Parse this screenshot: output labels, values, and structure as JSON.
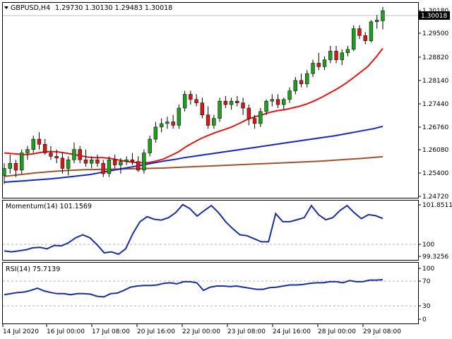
{
  "header": {
    "symbol_label": "GBPUSD,H4",
    "ohlc": "1.29730 1.30130 1.29483 1.30018",
    "menu_icon": "triangle-down-icon"
  },
  "colors": {
    "bull": "#1f9d1f",
    "bear": "#d11b1b",
    "ma_fast": "#e01818",
    "ma_mid": "#1627c8",
    "ma_slow": "#a0522d",
    "indicator_line": "#1b2f9e",
    "price_tag_bg": "#000000",
    "grid_dash": "#b0b0b0"
  },
  "price_axis": {
    "ticks": [
      "1.30180",
      "1.29500",
      "1.28820",
      "1.28140",
      "1.27440",
      "1.26760",
      "1.26080",
      "1.25400",
      "1.24720"
    ],
    "current_price": "1.30018"
  },
  "time_axis": {
    "labels": [
      "14 Jul 2020",
      "16 Jul 00:00",
      "17 Jul 08:00",
      "20 Jul 16:00",
      "22 Jul 00:00",
      "23 Jul 08:00",
      "24 Jul 16:00",
      "28 Jul 00:00",
      "29 Jul 08:00"
    ]
  },
  "momentum": {
    "label": "Momentum(14) 101.1569",
    "ticks": [
      "101.8511",
      "100",
      "99.3256"
    ]
  },
  "rsi": {
    "label": "RSI(14) 75.7139",
    "ticks": [
      "100",
      "70",
      "30",
      "0"
    ]
  },
  "chart_data": [
    {
      "type": "candlestick",
      "title": "GBPUSD,H4",
      "ylim": [
        1.246,
        1.3025
      ],
      "candles": [
        [
          1.2525,
          1.256,
          1.25,
          1.2545
        ],
        [
          1.2545,
          1.2585,
          1.253,
          1.256
        ],
        [
          1.256,
          1.257,
          1.252,
          1.254
        ],
        [
          1.254,
          1.26,
          1.253,
          1.259
        ],
        [
          1.259,
          1.261,
          1.257,
          1.26
        ],
        [
          1.26,
          1.264,
          1.259,
          1.263
        ],
        [
          1.263,
          1.265,
          1.26,
          1.2615
        ],
        [
          1.2615,
          1.263,
          1.2585,
          1.259
        ],
        [
          1.259,
          1.261,
          1.257,
          1.258
        ],
        [
          1.258,
          1.26,
          1.256,
          1.2575
        ],
        [
          1.2575,
          1.259,
          1.253,
          1.2545
        ],
        [
          1.2545,
          1.258,
          1.2525,
          1.257
        ],
        [
          1.257,
          1.262,
          1.256,
          1.26
        ],
        [
          1.26,
          1.261,
          1.256,
          1.257
        ],
        [
          1.257,
          1.26,
          1.255,
          1.256
        ],
        [
          1.256,
          1.258,
          1.2545,
          1.257
        ],
        [
          1.257,
          1.2585,
          1.255,
          1.256
        ],
        [
          1.256,
          1.257,
          1.252,
          1.253
        ],
        [
          1.253,
          1.258,
          1.252,
          1.257
        ],
        [
          1.257,
          1.2585,
          1.2545,
          1.2555
        ],
        [
          1.2555,
          1.2575,
          1.253,
          1.2565
        ],
        [
          1.2565,
          1.258,
          1.2555,
          1.257
        ],
        [
          1.257,
          1.259,
          1.2555,
          1.2565
        ],
        [
          1.2565,
          1.258,
          1.2535,
          1.254
        ],
        [
          1.254,
          1.26,
          1.253,
          1.259
        ],
        [
          1.259,
          1.264,
          1.258,
          1.263
        ],
        [
          1.263,
          1.268,
          1.262,
          1.2665
        ],
        [
          1.2665,
          1.269,
          1.265,
          1.2675
        ],
        [
          1.2675,
          1.2695,
          1.266,
          1.268
        ],
        [
          1.268,
          1.27,
          1.266,
          1.267
        ],
        [
          1.267,
          1.273,
          1.266,
          1.272
        ],
        [
          1.272,
          1.277,
          1.271,
          1.276
        ],
        [
          1.276,
          1.277,
          1.273,
          1.2745
        ],
        [
          1.2745,
          1.276,
          1.2725,
          1.2735
        ],
        [
          1.2735,
          1.275,
          1.269,
          1.27
        ],
        [
          1.27,
          1.2725,
          1.266,
          1.267
        ],
        [
          1.267,
          1.27,
          1.266,
          1.269
        ],
        [
          1.269,
          1.275,
          1.268,
          1.274
        ],
        [
          1.274,
          1.2755,
          1.272,
          1.273
        ],
        [
          1.273,
          1.275,
          1.2715,
          1.274
        ],
        [
          1.274,
          1.2755,
          1.2725,
          1.2735
        ],
        [
          1.2735,
          1.275,
          1.27,
          1.272
        ],
        [
          1.272,
          1.273,
          1.267,
          1.269
        ],
        [
          1.269,
          1.27,
          1.266,
          1.2675
        ],
        [
          1.2675,
          1.272,
          1.2665,
          1.271
        ],
        [
          1.271,
          1.2745,
          1.27,
          1.274
        ],
        [
          1.274,
          1.276,
          1.2725,
          1.2745
        ],
        [
          1.2745,
          1.276,
          1.272,
          1.273
        ],
        [
          1.273,
          1.275,
          1.2715,
          1.2745
        ],
        [
          1.2745,
          1.278,
          1.2735,
          1.277
        ],
        [
          1.277,
          1.281,
          1.276,
          1.28
        ],
        [
          1.28,
          1.282,
          1.278,
          1.279
        ],
        [
          1.279,
          1.283,
          1.278,
          1.282
        ],
        [
          1.282,
          1.286,
          1.281,
          1.285
        ],
        [
          1.285,
          1.288,
          1.283,
          1.284
        ],
        [
          1.284,
          1.287,
          1.283,
          1.286
        ],
        [
          1.286,
          1.29,
          1.285,
          1.2885
        ],
        [
          1.2885,
          1.29,
          1.285,
          1.286
        ],
        [
          1.286,
          1.289,
          1.2845,
          1.288
        ],
        [
          1.288,
          1.29,
          1.287,
          1.289
        ],
        [
          1.289,
          1.296,
          1.2885,
          1.295
        ],
        [
          1.295,
          1.296,
          1.292,
          1.293
        ],
        [
          1.293,
          1.294,
          1.2905,
          1.2915
        ],
        [
          1.2915,
          1.2975,
          1.291,
          1.297
        ],
        [
          1.297,
          1.299,
          1.295,
          1.2975
        ],
        [
          1.2973,
          1.3013,
          1.2948,
          1.3002
        ]
      ],
      "ma_fast": [
        1.259,
        1.2588,
        1.2586,
        1.2585,
        1.2588,
        1.2592,
        1.2594,
        1.2593,
        1.259,
        1.2586,
        1.2582,
        1.2578,
        1.2576,
        1.2576,
        1.2574,
        1.257,
        1.2566,
        1.2563,
        1.2562,
        1.2562,
        1.2566,
        1.2572,
        1.2582,
        1.2593,
        1.2608,
        1.262,
        1.2632,
        1.2641,
        1.265,
        1.2657,
        1.2665,
        1.2675,
        1.2686,
        1.2694,
        1.27,
        1.2707,
        1.2712,
        1.2715,
        1.272,
        1.2725,
        1.2732,
        1.2741,
        1.2752,
        1.2764,
        1.2776,
        1.279,
        1.2806,
        1.2823,
        1.284,
        1.2865,
        1.2893
      ],
      "ma_mid": [
        1.2505,
        1.2507,
        1.2509,
        1.2511,
        1.2513,
        1.2515,
        1.2518,
        1.2521,
        1.2524,
        1.2527,
        1.2532,
        1.2537,
        1.2542,
        1.2547,
        1.2552,
        1.2557,
        1.2562,
        1.2567,
        1.2571,
        1.2576,
        1.258,
        1.2584,
        1.2588,
        1.2592,
        1.2596,
        1.26,
        1.2604,
        1.2608,
        1.2612,
        1.2616,
        1.262,
        1.2624,
        1.2628,
        1.2632,
        1.2636,
        1.264,
        1.2645,
        1.265,
        1.2655,
        1.266,
        1.2667
      ],
      "ma_slow": [
        1.2522,
        1.2527,
        1.2532,
        1.2536,
        1.2539,
        1.2541,
        1.2542,
        1.2543,
        1.2544,
        1.2545,
        1.2546,
        1.2548,
        1.255,
        1.2552,
        1.2554,
        1.2556,
        1.2558,
        1.256,
        1.2562,
        1.2564,
        1.2566,
        1.2569,
        1.2572,
        1.2575,
        1.2579
      ],
      "momentum_values": [
        99.55,
        99.5,
        99.55,
        99.6,
        99.7,
        99.72,
        99.65,
        99.82,
        99.8,
        99.95,
        100.2,
        100.35,
        100.2,
        99.85,
        99.45,
        99.5,
        99.38,
        99.65,
        100.4,
        101.0,
        101.25,
        101.12,
        101.08,
        101.2,
        101.45,
        101.85,
        101.65,
        101.28,
        101.55,
        101.8,
        101.45,
        101.0,
        100.65,
        100.35,
        100.3,
        100.15,
        100.0,
        100.0,
        101.4,
        101.0,
        101.0,
        101.1,
        101.2,
        101.8,
        101.35,
        101.1,
        101.2,
        101.55,
        101.8,
        101.45,
        101.15,
        101.35,
        101.3,
        101.16
      ],
      "momentum_ylim": [
        99.1,
        102.05
      ],
      "rsi_values": [
        48,
        50,
        52,
        53,
        56,
        60,
        55,
        52,
        50,
        50,
        48,
        50,
        50,
        49,
        45,
        44,
        50,
        51,
        56,
        62,
        64,
        65,
        65,
        66,
        69,
        70,
        68,
        72,
        72,
        70,
        56,
        62,
        64,
        64,
        63,
        64,
        62,
        60,
        58,
        58,
        61,
        62,
        64,
        66,
        66,
        67,
        69,
        70,
        70,
        72,
        72,
        70,
        74,
        72,
        72,
        75,
        75,
        75.7
      ],
      "rsi_ylim": [
        -5,
        107
      ]
    }
  ]
}
